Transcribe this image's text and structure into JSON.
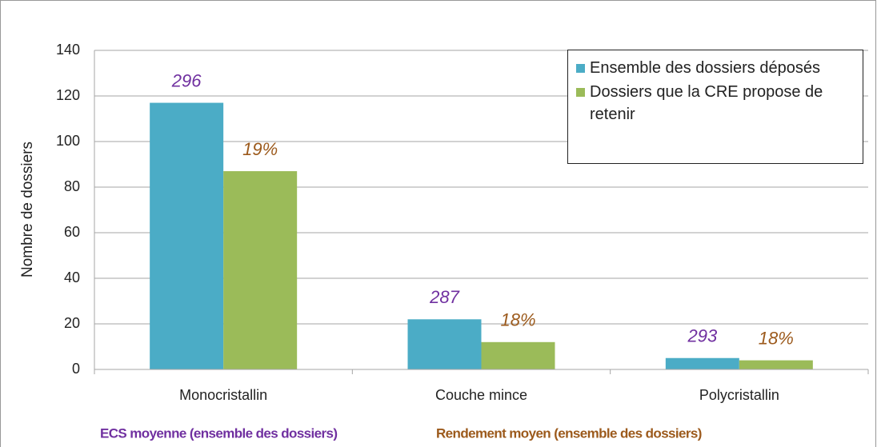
{
  "chart_data": {
    "type": "bar",
    "y_label": "Nombre de dossiers",
    "categories": [
      "Monocristallin",
      "Couche mince",
      "Polycristallin"
    ],
    "series": [
      {
        "name": "Ensemble des dossiers déposés",
        "color": "#4bacc6",
        "values": [
          117,
          22,
          5
        ],
        "annotations": [
          "296",
          "287",
          "293"
        ],
        "annotation_color": "#7030a0"
      },
      {
        "name": "Dossiers que la CRE propose de retenir",
        "color": "#9bbb59",
        "values": [
          87,
          12,
          4
        ],
        "annotations": [
          "19%",
          "18%",
          "18%"
        ],
        "annotation_color": "#9c5a1c"
      }
    ],
    "ylim": [
      0,
      140
    ],
    "yticks": [
      0,
      20,
      40,
      60,
      80,
      100,
      120,
      140
    ],
    "grid": true,
    "legend": "top-right",
    "notes": [
      {
        "text": "ECS moyenne (ensemble des dossiers)",
        "color": "#7030a0"
      },
      {
        "text": "Rendement moyen (ensemble des dossiers)",
        "color": "#9c5a1c"
      }
    ]
  }
}
